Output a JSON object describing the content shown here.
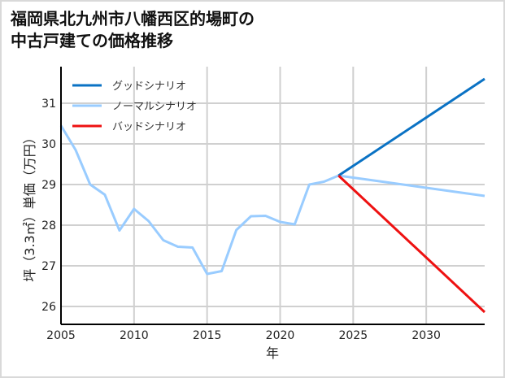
{
  "title": {
    "line1": "福岡県北九州市八幡西区的場町の",
    "line2": "中古戸建ての価格推移"
  },
  "chart_data": {
    "type": "line",
    "title": "福岡県北九州市八幡西区的場町の中古戸建ての価格推移",
    "xlabel": "年",
    "ylabel": "坪（3.3㎡）単価（万円）",
    "xlim": [
      2005,
      2034
    ],
    "ylim": [
      25.6,
      31.9
    ],
    "x_ticks": [
      2005,
      2010,
      2015,
      2020,
      2025,
      2030
    ],
    "y_ticks": [
      26,
      27,
      28,
      29,
      30,
      31
    ],
    "grid": true,
    "legend_position": "upper left",
    "series": [
      {
        "name": "グッドシナリオ",
        "color": "#0a72c4",
        "x": [
          2024,
          2034
        ],
        "values": [
          29.22,
          31.6
        ]
      },
      {
        "name": "ノーマルシナリオ",
        "color": "#99ccff",
        "x": [
          2005,
          2006,
          2007,
          2008,
          2009,
          2010,
          2011,
          2012,
          2013,
          2014,
          2015,
          2016,
          2017,
          2018,
          2019,
          2020,
          2021,
          2022,
          2023,
          2024,
          2034
        ],
        "values": [
          30.45,
          29.85,
          29.0,
          28.75,
          27.87,
          28.4,
          28.1,
          27.63,
          27.47,
          27.45,
          26.8,
          26.87,
          27.88,
          28.22,
          28.23,
          28.08,
          28.02,
          29.0,
          29.07,
          29.22,
          28.72
        ]
      },
      {
        "name": "バッドシナリオ",
        "color": "#ee1111",
        "x": [
          2024,
          2034
        ],
        "values": [
          29.22,
          25.86
        ]
      }
    ]
  }
}
